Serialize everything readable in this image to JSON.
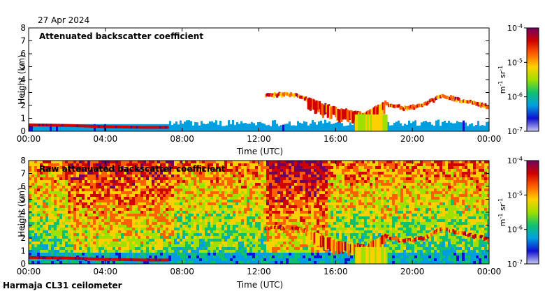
{
  "date_label": "27 Apr 2024",
  "footer": "Harmaja CL31 ceilometer",
  "colorbar_scale": [
    "#c8c8f0",
    "#1010d0",
    "#00a0e0",
    "#10c070",
    "#a0e000",
    "#ffd000",
    "#ff6000",
    "#d00000",
    "#700060"
  ],
  "chart_data": [
    {
      "type": "heatmap",
      "title": "Attenuated backscatter coefficient",
      "xlabel": "Time (UTC)",
      "ylabel": "Height (km)",
      "x_ticks": [
        "00:00",
        "04:00",
        "08:00",
        "12:00",
        "16:00",
        "20:00",
        "00:00"
      ],
      "y_ticks": [
        "0",
        "1",
        "2",
        "3",
        "4",
        "5",
        "6",
        "7",
        "8"
      ],
      "xlim_hours": [
        0,
        24
      ],
      "ylim": [
        0,
        8
      ],
      "colorbar": {
        "label_base": "m",
        "label_exp1": "-1",
        "label_mid": " sr",
        "label_exp2": "-1",
        "scale": "log",
        "range": [
          1e-07,
          0.0001
        ],
        "ticks": [
          {
            "base": "10",
            "exp": "-4"
          },
          {
            "base": "10",
            "exp": "-5"
          },
          {
            "base": "10",
            "exp": "-6"
          },
          {
            "base": "10",
            "exp": "-7"
          }
        ]
      },
      "cloud_layer": [
        {
          "t": 12.3,
          "h": 2.9
        },
        {
          "t": 13.0,
          "h": 2.95
        },
        {
          "t": 14.0,
          "h": 2.9
        },
        {
          "t": 15.0,
          "h": 2.3
        },
        {
          "t": 16.0,
          "h": 1.8
        },
        {
          "t": 16.8,
          "h": 1.6
        },
        {
          "t": 17.5,
          "h": 1.4
        },
        {
          "t": 18.5,
          "h": 2.3
        },
        {
          "t": 19.5,
          "h": 1.9
        },
        {
          "t": 20.5,
          "h": 2.1
        },
        {
          "t": 21.5,
          "h": 2.9
        },
        {
          "t": 22.5,
          "h": 2.5
        },
        {
          "t": 24.0,
          "h": 2.0
        }
      ],
      "surface_layer": [
        {
          "t": 0.0,
          "h": 0.5
        },
        {
          "t": 2.0,
          "h": 0.45
        },
        {
          "t": 4.0,
          "h": 0.35
        },
        {
          "t": 6.0,
          "h": 0.3
        },
        {
          "t": 7.2,
          "h": 0.3
        }
      ]
    },
    {
      "type": "heatmap",
      "title": "Raw attenuated backscatter coefficient",
      "xlabel": "Time (UTC)",
      "ylabel": "Height (km)",
      "x_ticks": [
        "00:00",
        "04:00",
        "08:00",
        "12:00",
        "16:00",
        "20:00",
        "00:00"
      ],
      "y_ticks": [
        "0",
        "1",
        "2",
        "3",
        "4",
        "5",
        "6",
        "7",
        "8"
      ],
      "xlim_hours": [
        0,
        24
      ],
      "ylim": [
        0,
        8
      ],
      "colorbar": {
        "label_base": "m",
        "label_exp1": "-1",
        "label_mid": " sr",
        "label_exp2": "-1",
        "scale": "log",
        "range": [
          1e-07,
          0.0001
        ],
        "ticks": [
          {
            "base": "10",
            "exp": "-4"
          },
          {
            "base": "10",
            "exp": "-5"
          },
          {
            "base": "10",
            "exp": "-6"
          },
          {
            "base": "10",
            "exp": "-7"
          }
        ]
      },
      "cloud_layer": [
        {
          "t": 12.3,
          "h": 2.9
        },
        {
          "t": 13.0,
          "h": 2.95
        },
        {
          "t": 14.0,
          "h": 2.9
        },
        {
          "t": 15.0,
          "h": 2.3
        },
        {
          "t": 16.0,
          "h": 1.8
        },
        {
          "t": 16.8,
          "h": 1.6
        },
        {
          "t": 17.5,
          "h": 1.4
        },
        {
          "t": 18.5,
          "h": 2.3
        },
        {
          "t": 19.5,
          "h": 1.9
        },
        {
          "t": 20.5,
          "h": 2.1
        },
        {
          "t": 21.5,
          "h": 2.9
        },
        {
          "t": 22.5,
          "h": 2.5
        },
        {
          "t": 24.0,
          "h": 2.0
        }
      ],
      "surface_layer": [
        {
          "t": 0.0,
          "h": 0.5
        },
        {
          "t": 2.0,
          "h": 0.45
        },
        {
          "t": 4.0,
          "h": 0.35
        },
        {
          "t": 6.0,
          "h": 0.3
        },
        {
          "t": 7.2,
          "h": 0.3
        }
      ]
    }
  ]
}
